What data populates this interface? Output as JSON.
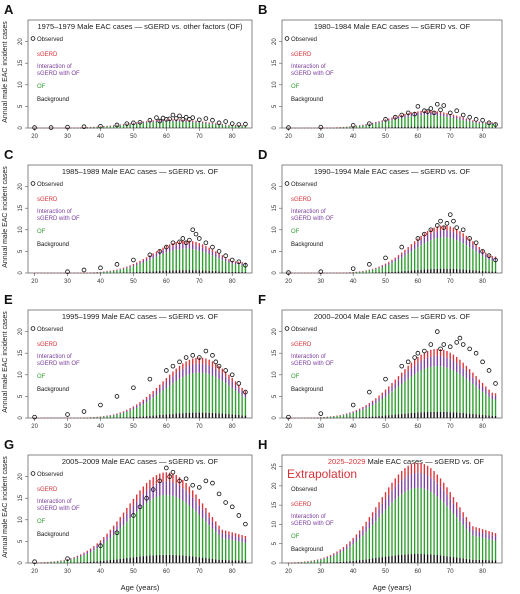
{
  "figure": {
    "ylabel": "Annual male EAC incident cases",
    "xlabel": "Age (years)"
  },
  "legend": {
    "observed": "Observed",
    "sgerd": "sGERD",
    "interaction_1": "Interaction of",
    "interaction_2": "sGERD with OF",
    "of": "OF",
    "background": "Background"
  },
  "colors": {
    "background": "#111111",
    "of": "#2e9e2e",
    "interaction": "#7b3f9e",
    "sgerd": "#d8333a",
    "observed": "#111111",
    "extrapolation": "#d8333a"
  },
  "chart_data": [
    {
      "panel": "A",
      "type": "bar",
      "stacked": true,
      "title": "1975–1979 Male EAC cases — sGERD vs. other factors (OF)",
      "xlim": [
        18,
        86
      ],
      "ylim": [
        0,
        25
      ],
      "xticks": [
        20,
        30,
        40,
        50,
        60,
        70,
        80
      ],
      "yticks": [
        0,
        5,
        10,
        15,
        20
      ],
      "peak_age": 62,
      "peak_total": 2.0,
      "spread": 12,
      "observed_points": [
        [
          20,
          0.1
        ],
        [
          25,
          0.1
        ],
        [
          30,
          0.2
        ],
        [
          35,
          0.3
        ],
        [
          40,
          0.4
        ],
        [
          45,
          0.7
        ],
        [
          48,
          1.0
        ],
        [
          50,
          1.2
        ],
        [
          52,
          1.3
        ],
        [
          55,
          1.8
        ],
        [
          57,
          2.4
        ],
        [
          58,
          1.6
        ],
        [
          59,
          2.3
        ],
        [
          60,
          2.0
        ],
        [
          61,
          2.1
        ],
        [
          62,
          3.0
        ],
        [
          63,
          2.2
        ],
        [
          64,
          2.8
        ],
        [
          65,
          2.0
        ],
        [
          66,
          2.5
        ],
        [
          67,
          2.0
        ],
        [
          68,
          2.4
        ],
        [
          70,
          1.9
        ],
        [
          72,
          2.2
        ],
        [
          74,
          1.8
        ],
        [
          76,
          1.2
        ],
        [
          78,
          1.5
        ],
        [
          80,
          1.0
        ],
        [
          82,
          0.8
        ],
        [
          84,
          0.9
        ]
      ]
    },
    {
      "panel": "B",
      "type": "bar",
      "stacked": true,
      "title": "1980–1984 Male EAC cases — sGERD vs. OF",
      "xlim": [
        18,
        86
      ],
      "ylim": [
        0,
        25
      ],
      "xticks": [
        20,
        30,
        40,
        50,
        60,
        70,
        80
      ],
      "yticks": [
        0,
        5,
        10,
        15,
        20
      ],
      "peak_age": 63,
      "peak_total": 4.0,
      "spread": 11,
      "observed_points": [
        [
          20,
          0.1
        ],
        [
          30,
          0.2
        ],
        [
          40,
          0.6
        ],
        [
          45,
          1.0
        ],
        [
          50,
          2.0
        ],
        [
          53,
          2.5
        ],
        [
          55,
          3.0
        ],
        [
          57,
          3.5
        ],
        [
          59,
          3.2
        ],
        [
          60,
          5.0
        ],
        [
          62,
          4.0
        ],
        [
          63,
          3.8
        ],
        [
          64,
          4.5
        ],
        [
          65,
          3.5
        ],
        [
          66,
          5.5
        ],
        [
          67,
          4.2
        ],
        [
          68,
          5.2
        ],
        [
          70,
          3.5
        ],
        [
          72,
          4.0
        ],
        [
          74,
          3.0
        ],
        [
          76,
          2.5
        ],
        [
          78,
          2.0
        ],
        [
          80,
          1.8
        ],
        [
          82,
          1.2
        ],
        [
          84,
          0.8
        ]
      ]
    },
    {
      "panel": "C",
      "type": "bar",
      "stacked": true,
      "title": "1985–1989 Male EAC cases — sGERD vs. OF",
      "xlim": [
        18,
        86
      ],
      "ylim": [
        0,
        25
      ],
      "xticks": [
        20,
        30,
        40,
        50,
        60,
        70,
        80
      ],
      "yticks": [
        0,
        5,
        10,
        15,
        20
      ],
      "peak_age": 66,
      "peak_total": 7.5,
      "spread": 10,
      "observed_points": [
        [
          30,
          0.3
        ],
        [
          35,
          0.7
        ],
        [
          40,
          1.2
        ],
        [
          45,
          2.0
        ],
        [
          50,
          3.0
        ],
        [
          55,
          4.2
        ],
        [
          58,
          5.0
        ],
        [
          60,
          6.0
        ],
        [
          62,
          7.0
        ],
        [
          64,
          7.2
        ],
        [
          65,
          8.0
        ],
        [
          66,
          7.0
        ],
        [
          67,
          7.6
        ],
        [
          68,
          10.0
        ],
        [
          69,
          9.0
        ],
        [
          70,
          8.0
        ],
        [
          72,
          7.0
        ],
        [
          74,
          6.0
        ],
        [
          76,
          5.0
        ],
        [
          78,
          4.0
        ],
        [
          80,
          3.0
        ],
        [
          82,
          2.6
        ],
        [
          84,
          1.8
        ]
      ]
    },
    {
      "panel": "D",
      "type": "bar",
      "stacked": true,
      "title": "1990–1994 Male EAC cases — sGERD vs. OF",
      "xlim": [
        18,
        86
      ],
      "ylim": [
        0,
        25
      ],
      "xticks": [
        20,
        30,
        40,
        50,
        60,
        70,
        80
      ],
      "yticks": [
        0,
        5,
        10,
        15,
        20
      ],
      "peak_age": 68,
      "peak_total": 11.0,
      "spread": 10,
      "observed_points": [
        [
          20,
          0.1
        ],
        [
          30,
          0.3
        ],
        [
          40,
          1.0
        ],
        [
          45,
          2.0
        ],
        [
          50,
          3.5
        ],
        [
          55,
          6.0
        ],
        [
          60,
          8.0
        ],
        [
          62,
          9.0
        ],
        [
          64,
          10.0
        ],
        [
          66,
          11.0
        ],
        [
          67,
          12.0
        ],
        [
          68,
          10.5
        ],
        [
          69,
          11.5
        ],
        [
          70,
          13.5
        ],
        [
          71,
          12.0
        ],
        [
          72,
          10.5
        ],
        [
          74,
          10.0
        ],
        [
          76,
          8.0
        ],
        [
          78,
          7.0
        ],
        [
          80,
          5.0
        ],
        [
          82,
          4.0
        ],
        [
          84,
          3.0
        ]
      ]
    },
    {
      "panel": "E",
      "type": "bar",
      "stacked": true,
      "title": "1995–1999 Male EAC cases — sGERD vs. OF",
      "xlim": [
        18,
        86
      ],
      "ylim": [
        0,
        25
      ],
      "xticks": [
        20,
        30,
        40,
        50,
        60,
        70,
        80
      ],
      "yticks": [
        0,
        5,
        10,
        15,
        20
      ],
      "peak_age": 70,
      "peak_total": 14.0,
      "spread": 11,
      "observed_points": [
        [
          20,
          0.2
        ],
        [
          30,
          0.8
        ],
        [
          35,
          1.5
        ],
        [
          40,
          3.0
        ],
        [
          45,
          5.0
        ],
        [
          50,
          7.0
        ],
        [
          55,
          9.0
        ],
        [
          60,
          11.0
        ],
        [
          62,
          12.0
        ],
        [
          64,
          13.0
        ],
        [
          66,
          14.0
        ],
        [
          68,
          14.5
        ],
        [
          70,
          14.0
        ],
        [
          72,
          15.5
        ],
        [
          74,
          14.5
        ],
        [
          75,
          13.0
        ],
        [
          76,
          12.0
        ],
        [
          78,
          11.0
        ],
        [
          80,
          10.0
        ],
        [
          82,
          8.0
        ],
        [
          84,
          6.0
        ]
      ]
    },
    {
      "panel": "F",
      "type": "bar",
      "stacked": true,
      "title": "2000–2004 Male EAC cases — sGERD vs. OF",
      "xlim": [
        18,
        86
      ],
      "ylim": [
        0,
        25
      ],
      "xticks": [
        20,
        30,
        40,
        50,
        60,
        70,
        80
      ],
      "yticks": [
        0,
        5,
        10,
        15,
        20
      ],
      "peak_age": 66,
      "peak_total": 16.0,
      "spread": 12,
      "observed_points": [
        [
          20,
          0.2
        ],
        [
          30,
          1.0
        ],
        [
          40,
          3.0
        ],
        [
          45,
          6.0
        ],
        [
          50,
          9.0
        ],
        [
          55,
          12.0
        ],
        [
          57,
          13.0
        ],
        [
          59,
          14.0
        ],
        [
          60,
          15.0
        ],
        [
          62,
          15.5
        ],
        [
          64,
          17.0
        ],
        [
          66,
          20.0
        ],
        [
          67,
          16.0
        ],
        [
          68,
          17.0
        ],
        [
          70,
          16.5
        ],
        [
          72,
          17.5
        ],
        [
          73,
          18.5
        ],
        [
          74,
          17.0
        ],
        [
          76,
          16.0
        ],
        [
          78,
          15.0
        ],
        [
          80,
          13.0
        ],
        [
          82,
          11.0
        ],
        [
          84,
          8.0
        ]
      ]
    },
    {
      "panel": "G",
      "type": "bar",
      "stacked": true,
      "title": "2005–2009 Male EAC cases — sGERD vs. OF",
      "xlim": [
        18,
        86
      ],
      "ylim": [
        0,
        25
      ],
      "xticks": [
        20,
        30,
        40,
        50,
        60,
        70,
        80
      ],
      "yticks": [
        0,
        5,
        10,
        15,
        20
      ],
      "peak_age": 60,
      "peak_total": 21.0,
      "spread": 12,
      "observed_points": [
        [
          20,
          0.3
        ],
        [
          30,
          1.0
        ],
        [
          40,
          4.0
        ],
        [
          45,
          7.0
        ],
        [
          50,
          11.0
        ],
        [
          52,
          13.0
        ],
        [
          54,
          15.0
        ],
        [
          56,
          17.0
        ],
        [
          58,
          19.0
        ],
        [
          60,
          22.0
        ],
        [
          61,
          20.0
        ],
        [
          62,
          21.0
        ],
        [
          64,
          19.0
        ],
        [
          66,
          19.5
        ],
        [
          68,
          18.0
        ],
        [
          70,
          17.5
        ],
        [
          72,
          19.0
        ],
        [
          74,
          18.5
        ],
        [
          76,
          16.0
        ],
        [
          78,
          14.0
        ],
        [
          80,
          13.0
        ],
        [
          82,
          11.0
        ],
        [
          84,
          9.0
        ]
      ]
    },
    {
      "panel": "H",
      "type": "bar",
      "stacked": true,
      "title_year": "2025–2029",
      "title_rest": "Male EAC cases — sGERD vs. OF",
      "annotation": "Extrapolation",
      "xlim": [
        18,
        86
      ],
      "ylim": [
        0,
        28
      ],
      "xticks": [
        20,
        30,
        40,
        50,
        60,
        70,
        80
      ],
      "yticks": [
        0,
        5,
        10,
        15,
        20,
        25
      ],
      "peak_age": 60,
      "peak_total": 26.0,
      "spread": 12,
      "observed_points": []
    }
  ]
}
